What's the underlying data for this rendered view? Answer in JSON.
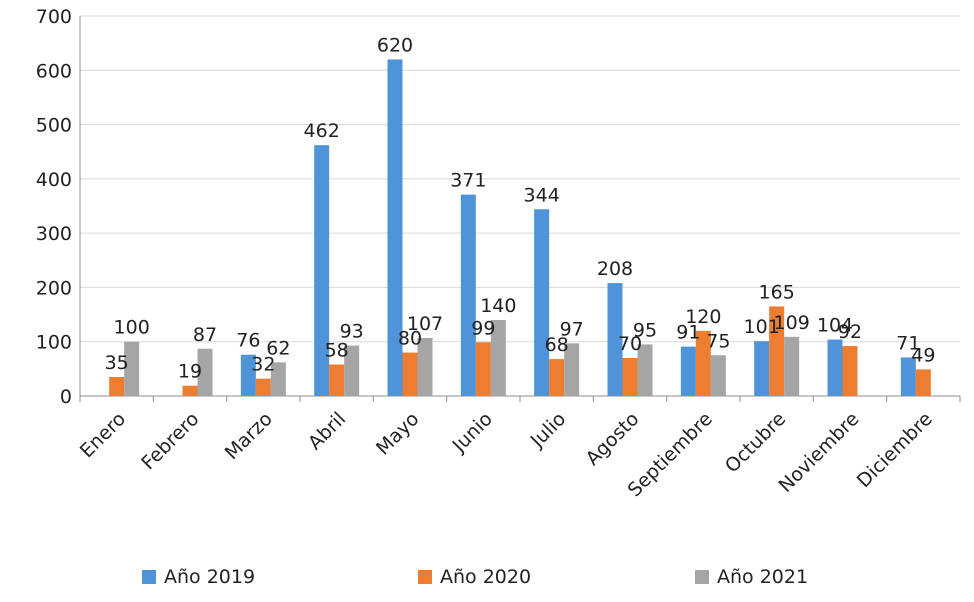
{
  "chart_data": {
    "type": "bar",
    "title": "",
    "xlabel": "",
    "ylabel": "",
    "ylim": [
      0,
      700
    ],
    "yticks": [
      0,
      100,
      200,
      300,
      400,
      500,
      600,
      700
    ],
    "grid": "horizontal",
    "legend": "bottom",
    "categories": [
      "Enero",
      "Febrero",
      "Marzo",
      "Abril",
      "Mayo",
      "Junio",
      "Julio",
      "Agosto",
      "Septiembre",
      "Octubre",
      "Noviembre",
      "Diciembre"
    ],
    "series": [
      {
        "name": "Año 2019",
        "color": "#4f93d8",
        "values": [
          null,
          null,
          76,
          462,
          620,
          371,
          344,
          208,
          91,
          101,
          104,
          71
        ]
      },
      {
        "name": "Año 2020",
        "color": "#ed7d31",
        "values": [
          35,
          19,
          32,
          58,
          80,
          99,
          68,
          70,
          120,
          165,
          92,
          49
        ]
      },
      {
        "name": "Año 2021",
        "color": "#a5a5a5",
        "values": [
          100,
          87,
          62,
          93,
          107,
          140,
          97,
          95,
          75,
          109,
          null,
          null
        ]
      }
    ]
  }
}
